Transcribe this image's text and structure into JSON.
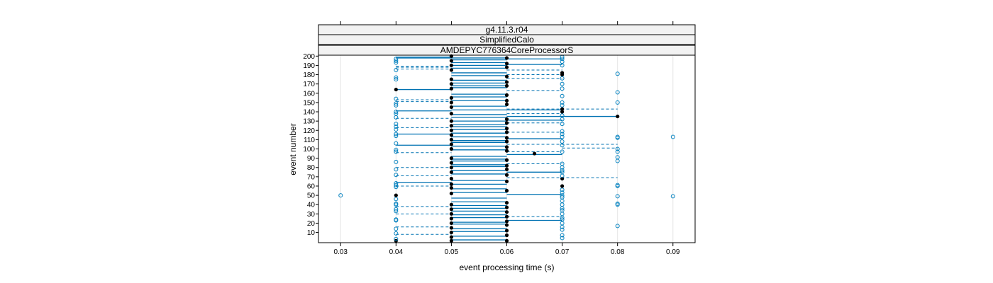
{
  "chart_data": {
    "type": "scatter",
    "strips": [
      "g4.11.3.r04",
      "SimplifiedCalo",
      "AMDEPYC776364CoreProcessorS"
    ],
    "xlabel": "event processing time (s)",
    "ylabel": "event number",
    "xlim": [
      0.026,
      0.094
    ],
    "ylim": [
      -1,
      201
    ],
    "x_ticks": [
      0.03,
      0.04,
      0.05,
      0.06,
      0.07,
      0.08,
      0.09
    ],
    "x_tick_labels": [
      "0.03",
      "0.04",
      "0.05",
      "0.06",
      "0.07",
      "0.08",
      "0.09"
    ],
    "y_ticks": [
      10,
      20,
      30,
      40,
      50,
      60,
      70,
      80,
      90,
      100,
      110,
      120,
      130,
      140,
      150,
      160,
      170,
      180,
      190,
      200
    ],
    "y_tick_labels": [
      "10",
      "20",
      "30",
      "40",
      "50",
      "60",
      "70",
      "80",
      "90",
      "100",
      "110",
      "120",
      "130",
      "140",
      "150",
      "160",
      "170",
      "180",
      "190",
      "200"
    ],
    "grid": "vertical",
    "colors": {
      "open": "#0080bf",
      "filled": "#000000",
      "line": "#0072b2",
      "strip_bg": "#f2f2f2"
    },
    "series": [
      {
        "name": "",
        "style": "filled",
        "points": [
          [
            0.04,
            1
          ],
          [
            0.05,
            1
          ],
          [
            0.06,
            1
          ],
          [
            0.05,
            5
          ],
          [
            0.06,
            7
          ],
          [
            0.05,
            10
          ],
          [
            0.06,
            12
          ],
          [
            0.05,
            15
          ],
          [
            0.06,
            18
          ],
          [
            0.05,
            20
          ],
          [
            0.06,
            22
          ],
          [
            0.05,
            25
          ],
          [
            0.06,
            27
          ],
          [
            0.05,
            30
          ],
          [
            0.06,
            32
          ],
          [
            0.05,
            35
          ],
          [
            0.06,
            37
          ],
          [
            0.05,
            40
          ],
          [
            0.06,
            42
          ],
          [
            0.04,
            50
          ],
          [
            0.05,
            52
          ],
          [
            0.06,
            55
          ],
          [
            0.05,
            58
          ],
          [
            0.07,
            60
          ],
          [
            0.05,
            62
          ],
          [
            0.06,
            65
          ],
          [
            0.05,
            68
          ],
          [
            0.07,
            68
          ],
          [
            0.06,
            72
          ],
          [
            0.05,
            75
          ],
          [
            0.06,
            78
          ],
          [
            0.05,
            80
          ],
          [
            0.06,
            82
          ],
          [
            0.05,
            85
          ],
          [
            0.06,
            88
          ],
          [
            0.05,
            90
          ],
          [
            0.065,
            95
          ],
          [
            0.06,
            98
          ],
          [
            0.05,
            100
          ],
          [
            0.06,
            102
          ],
          [
            0.05,
            105
          ],
          [
            0.06,
            108
          ],
          [
            0.05,
            110
          ],
          [
            0.06,
            112
          ],
          [
            0.05,
            115
          ],
          [
            0.06,
            118
          ],
          [
            0.05,
            120
          ],
          [
            0.06,
            122
          ],
          [
            0.05,
            125
          ],
          [
            0.06,
            128
          ],
          [
            0.05,
            130
          ],
          [
            0.06,
            132
          ],
          [
            0.08,
            135
          ],
          [
            0.05,
            138
          ],
          [
            0.07,
            140
          ],
          [
            0.07,
            143
          ],
          [
            0.05,
            145
          ],
          [
            0.06,
            148
          ],
          [
            0.05,
            150
          ],
          [
            0.06,
            152
          ],
          [
            0.05,
            155
          ],
          [
            0.06,
            158
          ],
          [
            0.04,
            164
          ],
          [
            0.05,
            165
          ],
          [
            0.06,
            168
          ],
          [
            0.05,
            170
          ],
          [
            0.06,
            172
          ],
          [
            0.05,
            175
          ],
          [
            0.06,
            178
          ],
          [
            0.07,
            180
          ],
          [
            0.07,
            182
          ],
          [
            0.05,
            185
          ],
          [
            0.06,
            188
          ],
          [
            0.05,
            190
          ],
          [
            0.06,
            192
          ],
          [
            0.05,
            195
          ],
          [
            0.06,
            198
          ],
          [
            0.05,
            200
          ]
        ]
      },
      {
        "name": "",
        "style": "open",
        "points": [
          [
            0.04,
            3
          ],
          [
            0.04,
            9
          ],
          [
            0.04,
            14
          ],
          [
            0.07,
            4
          ],
          [
            0.07,
            7
          ],
          [
            0.07,
            13
          ],
          [
            0.07,
            16
          ],
          [
            0.08,
            17
          ],
          [
            0.04,
            23
          ],
          [
            0.04,
            24
          ],
          [
            0.07,
            20
          ],
          [
            0.07,
            24
          ],
          [
            0.07,
            26
          ],
          [
            0.04,
            33
          ],
          [
            0.04,
            35
          ],
          [
            0.04,
            40
          ],
          [
            0.04,
            41
          ],
          [
            0.07,
            30
          ],
          [
            0.07,
            34
          ],
          [
            0.07,
            36
          ],
          [
            0.07,
            40
          ],
          [
            0.08,
            40
          ],
          [
            0.08,
            41
          ],
          [
            0.03,
            50
          ],
          [
            0.04,
            46
          ],
          [
            0.07,
            44
          ],
          [
            0.07,
            48
          ],
          [
            0.07,
            50
          ],
          [
            0.07,
            53
          ],
          [
            0.08,
            49
          ],
          [
            0.09,
            49
          ],
          [
            0.04,
            59
          ],
          [
            0.04,
            61
          ],
          [
            0.04,
            63
          ],
          [
            0.07,
            56
          ],
          [
            0.08,
            60
          ],
          [
            0.08,
            61
          ],
          [
            0.04,
            72
          ],
          [
            0.04,
            78
          ],
          [
            0.04,
            86
          ],
          [
            0.07,
            71
          ],
          [
            0.07,
            75
          ],
          [
            0.07,
            77
          ],
          [
            0.07,
            80
          ],
          [
            0.07,
            84
          ],
          [
            0.08,
            87
          ],
          [
            0.08,
            91
          ],
          [
            0.04,
            97
          ],
          [
            0.04,
            99
          ],
          [
            0.04,
            106
          ],
          [
            0.07,
            97
          ],
          [
            0.07,
            104
          ],
          [
            0.07,
            108
          ],
          [
            0.08,
            97
          ],
          [
            0.08,
            100
          ],
          [
            0.08,
            112
          ],
          [
            0.08,
            113
          ],
          [
            0.09,
            113
          ],
          [
            0.04,
            114
          ],
          [
            0.04,
            116
          ],
          [
            0.04,
            121
          ],
          [
            0.04,
            124
          ],
          [
            0.04,
            127
          ],
          [
            0.07,
            113
          ],
          [
            0.07,
            116
          ],
          [
            0.07,
            119
          ],
          [
            0.07,
            127
          ],
          [
            0.04,
            134
          ],
          [
            0.04,
            138
          ],
          [
            0.04,
            140
          ],
          [
            0.04,
            147
          ],
          [
            0.04,
            149
          ],
          [
            0.07,
            132
          ],
          [
            0.07,
            136
          ],
          [
            0.07,
            147
          ],
          [
            0.07,
            150
          ],
          [
            0.08,
            150
          ],
          [
            0.08,
            161
          ],
          [
            0.04,
            154
          ],
          [
            0.04,
            175
          ],
          [
            0.04,
            177
          ],
          [
            0.04,
            185
          ],
          [
            0.07,
            157
          ],
          [
            0.07,
            165
          ],
          [
            0.07,
            170
          ],
          [
            0.07,
            176
          ],
          [
            0.08,
            181
          ],
          [
            0.04,
            193
          ],
          [
            0.04,
            195
          ],
          [
            0.04,
            197
          ],
          [
            0.07,
            190
          ],
          [
            0.07,
            194
          ],
          [
            0.07,
            197
          ],
          [
            0.07,
            199
          ]
        ]
      }
    ],
    "segments": [
      [
        0.05,
        0.06,
        2,
        "solid"
      ],
      [
        0.05,
        0.06,
        6,
        "solid"
      ],
      [
        0.04,
        0.05,
        8,
        "dashed"
      ],
      [
        0.05,
        0.06,
        11,
        "solid"
      ],
      [
        0.05,
        0.06,
        14,
        "solid"
      ],
      [
        0.04,
        0.05,
        16,
        "dashed"
      ],
      [
        0.05,
        0.06,
        19,
        "solid"
      ],
      [
        0.05,
        0.06,
        21,
        "solid"
      ],
      [
        0.06,
        0.07,
        23,
        "solid"
      ],
      [
        0.05,
        0.06,
        26,
        "solid"
      ],
      [
        0.06,
        0.07,
        27,
        "dashed"
      ],
      [
        0.05,
        0.06,
        29,
        "solid"
      ],
      [
        0.04,
        0.05,
        30,
        "dashed"
      ],
      [
        0.05,
        0.06,
        33,
        "solid"
      ],
      [
        0.05,
        0.06,
        36,
        "solid"
      ],
      [
        0.04,
        0.05,
        38,
        "dashed"
      ],
      [
        0.05,
        0.06,
        39,
        "solid"
      ],
      [
        0.05,
        0.06,
        43,
        "solid"
      ],
      [
        0.05,
        0.06,
        47,
        "solid"
      ],
      [
        0.06,
        0.07,
        51,
        "solid"
      ],
      [
        0.05,
        0.06,
        53,
        "solid"
      ],
      [
        0.05,
        0.06,
        57,
        "solid"
      ],
      [
        0.04,
        0.05,
        60,
        "dashed"
      ],
      [
        0.05,
        0.06,
        62,
        "solid"
      ],
      [
        0.04,
        0.05,
        64,
        "solid"
      ],
      [
        0.05,
        0.06,
        66,
        "solid"
      ],
      [
        0.06,
        0.08,
        69,
        "dashed"
      ],
      [
        0.04,
        0.05,
        71,
        "dashed"
      ],
      [
        0.05,
        0.06,
        73,
        "solid"
      ],
      [
        0.06,
        0.07,
        75,
        "solid"
      ],
      [
        0.05,
        0.06,
        77,
        "solid"
      ],
      [
        0.04,
        0.05,
        80,
        "dashed"
      ],
      [
        0.05,
        0.06,
        81,
        "solid"
      ],
      [
        0.05,
        0.06,
        83,
        "solid"
      ],
      [
        0.06,
        0.07,
        84,
        "dashed"
      ],
      [
        0.05,
        0.06,
        87,
        "solid"
      ],
      [
        0.05,
        0.06,
        89,
        "solid"
      ],
      [
        0.05,
        0.06,
        92,
        "solid"
      ],
      [
        0.06,
        0.07,
        94,
        "solid"
      ],
      [
        0.04,
        0.05,
        96,
        "dashed"
      ],
      [
        0.06,
        0.07,
        97,
        "dashed"
      ],
      [
        0.05,
        0.06,
        99,
        "solid"
      ],
      [
        0.07,
        0.08,
        101,
        "dashed"
      ],
      [
        0.05,
        0.06,
        103,
        "solid"
      ],
      [
        0.04,
        0.05,
        104,
        "solid"
      ],
      [
        0.06,
        0.08,
        105,
        "dashed"
      ],
      [
        0.05,
        0.06,
        107,
        "solid"
      ],
      [
        0.05,
        0.06,
        109,
        "solid"
      ],
      [
        0.06,
        0.07,
        111,
        "solid"
      ],
      [
        0.05,
        0.06,
        113,
        "solid"
      ],
      [
        0.04,
        0.05,
        116,
        "solid"
      ],
      [
        0.05,
        0.06,
        117,
        "solid"
      ],
      [
        0.06,
        0.07,
        118,
        "dashed"
      ],
      [
        0.05,
        0.06,
        121,
        "solid"
      ],
      [
        0.04,
        0.05,
        123,
        "dashed"
      ],
      [
        0.05,
        0.06,
        124,
        "solid"
      ],
      [
        0.05,
        0.06,
        126,
        "solid"
      ],
      [
        0.06,
        0.07,
        128,
        "dashed"
      ],
      [
        0.05,
        0.06,
        130,
        "solid"
      ],
      [
        0.06,
        0.07,
        131,
        "solid"
      ],
      [
        0.04,
        0.05,
        133,
        "dashed"
      ],
      [
        0.05,
        0.06,
        134,
        "solid"
      ],
      [
        0.06,
        0.08,
        135,
        "solid"
      ],
      [
        0.05,
        0.06,
        137,
        "solid"
      ],
      [
        0.06,
        0.07,
        138,
        "dashed"
      ],
      [
        0.04,
        0.05,
        141,
        "solid"
      ],
      [
        0.05,
        0.06,
        142,
        "solid"
      ],
      [
        0.06,
        0.07,
        142,
        "solid"
      ],
      [
        0.06,
        0.08,
        143,
        "dashed"
      ],
      [
        0.05,
        0.06,
        146,
        "solid"
      ],
      [
        0.04,
        0.05,
        151,
        "dashed"
      ],
      [
        0.05,
        0.06,
        152,
        "solid"
      ],
      [
        0.04,
        0.05,
        153,
        "dashed"
      ],
      [
        0.05,
        0.06,
        156,
        "solid"
      ],
      [
        0.05,
        0.06,
        159,
        "solid"
      ],
      [
        0.06,
        0.07,
        163,
        "dashed"
      ],
      [
        0.04,
        0.05,
        164,
        "solid"
      ],
      [
        0.05,
        0.06,
        166,
        "solid"
      ],
      [
        0.05,
        0.06,
        168,
        "solid"
      ],
      [
        0.05,
        0.06,
        171,
        "solid"
      ],
      [
        0.05,
        0.06,
        174,
        "solid"
      ],
      [
        0.06,
        0.07,
        176,
        "dashed"
      ],
      [
        0.05,
        0.06,
        179,
        "solid"
      ],
      [
        0.06,
        0.07,
        180,
        "dashed"
      ],
      [
        0.05,
        0.06,
        182,
        "solid"
      ],
      [
        0.06,
        0.07,
        185,
        "dashed"
      ],
      [
        0.04,
        0.05,
        186,
        "dashed"
      ],
      [
        0.05,
        0.06,
        187,
        "solid"
      ],
      [
        0.04,
        0.05,
        188,
        "dashed"
      ],
      [
        0.04,
        0.05,
        189,
        "dashed"
      ],
      [
        0.05,
        0.06,
        190,
        "solid"
      ],
      [
        0.06,
        0.07,
        191,
        "solid"
      ],
      [
        0.05,
        0.06,
        193,
        "solid"
      ],
      [
        0.05,
        0.06,
        196,
        "solid"
      ],
      [
        0.06,
        0.07,
        197,
        "solid"
      ],
      [
        0.04,
        0.06,
        198,
        "solid"
      ],
      [
        0.04,
        0.05,
        199,
        "solid"
      ]
    ]
  }
}
